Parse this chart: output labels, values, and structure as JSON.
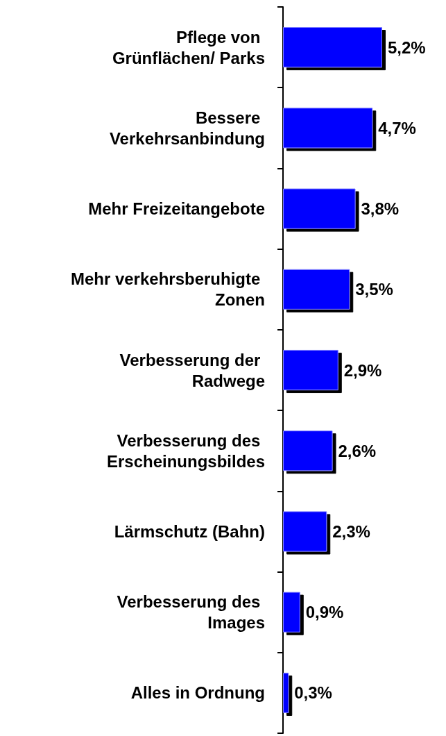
{
  "chart_data": {
    "type": "bar",
    "orientation": "horizontal",
    "categories": [
      "Pflege von Grünflächen/ Parks",
      "Bessere Verkehrsanbindung",
      "Mehr Freizeitangebote",
      "Mehr verkehrsberuhigte Zonen",
      "Verbesserung der Radwege",
      "Verbesserung des Erscheinungsbildes",
      "Lärmschutz (Bahn)",
      "Verbesserung des Images",
      "Alles in Ordnung"
    ],
    "values": [
      5.2,
      4.7,
      3.8,
      3.5,
      2.9,
      2.6,
      2.3,
      0.9,
      0.3
    ],
    "value_labels": [
      "5,2%",
      "4,7%",
      "3,8%",
      "3,5%",
      "2,9%",
      "2,6%",
      "2,3%",
      "0,9%",
      "0,3%"
    ],
    "color": "#0000ff"
  }
}
